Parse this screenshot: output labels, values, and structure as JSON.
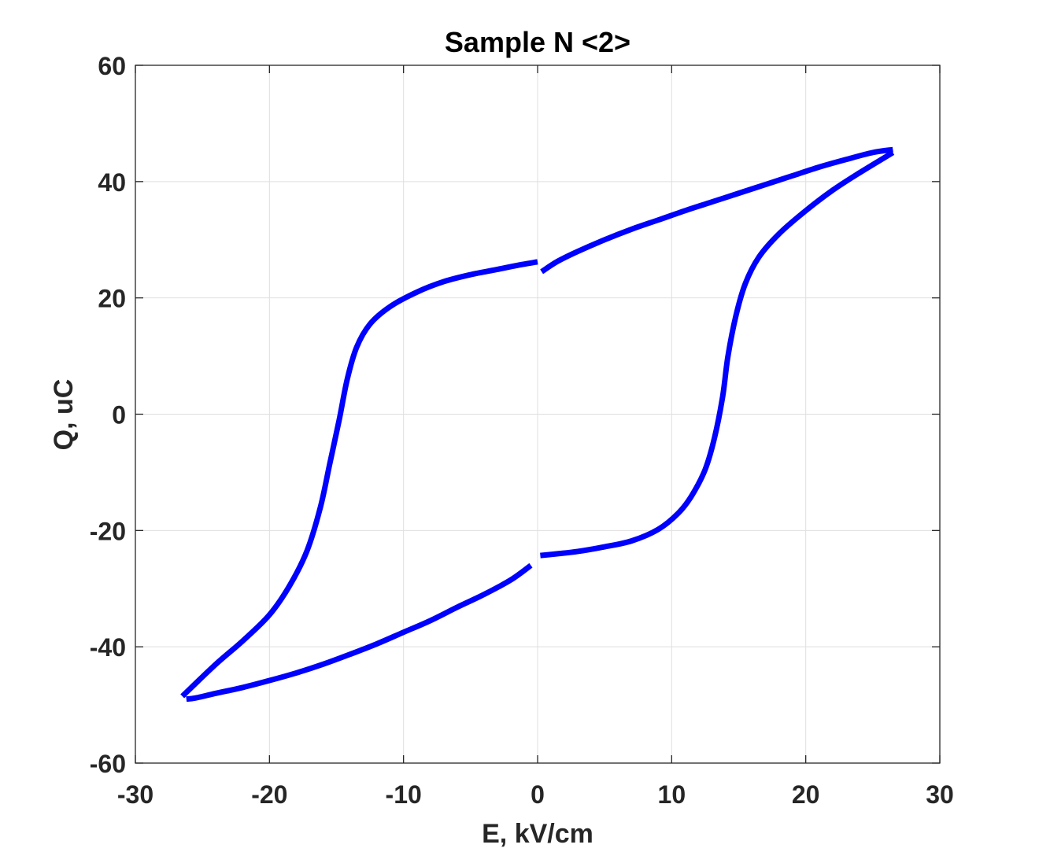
{
  "chart_data": {
    "type": "line",
    "title": "Sample N <2>",
    "xlabel": "E, kV/cm",
    "ylabel": "Q, uC",
    "xlim": [
      -30,
      30
    ],
    "ylim": [
      -60,
      60
    ],
    "xticks": [
      -30,
      -20,
      -10,
      0,
      10,
      20,
      30
    ],
    "yticks": [
      -60,
      -40,
      -20,
      0,
      20,
      40,
      60
    ],
    "xtick_labels": [
      "-30",
      "-20",
      "-10",
      "0",
      "10",
      "20",
      "30"
    ],
    "ytick_labels": [
      "-60",
      "-40",
      "-20",
      "0",
      "20",
      "40",
      "60"
    ],
    "grid": true,
    "color": "#0000ff",
    "series": [
      {
        "segment": "upper-branch-positive",
        "x": [
          0.3,
          1.5,
          3,
          5,
          7,
          9,
          11,
          13,
          15,
          17,
          19,
          21,
          23,
          25,
          26.5
        ],
        "y": [
          24.5,
          26.3,
          28.0,
          30.0,
          31.8,
          33.4,
          35.0,
          36.5,
          38.0,
          39.5,
          41.0,
          42.5,
          43.8,
          45.0,
          45.5
        ]
      },
      {
        "segment": "descending-branch",
        "x": [
          26.5,
          24,
          22,
          20,
          18,
          16.5,
          15.5,
          14.8,
          14.2,
          13.8,
          13.2,
          12.5,
          11.5,
          10.5,
          9,
          7,
          5,
          3,
          1.5,
          0.2
        ],
        "y": [
          45.0,
          41.5,
          38.5,
          35.0,
          31.0,
          27.0,
          22.5,
          17.0,
          10.0,
          3.0,
          -4.0,
          -9.5,
          -14.0,
          -17.0,
          -19.8,
          -21.8,
          -22.8,
          -23.6,
          -24.0,
          -24.3
        ]
      },
      {
        "segment": "lower-branch-negative",
        "x": [
          -0.5,
          -2,
          -4,
          -6,
          -8,
          -10,
          -12,
          -14,
          -16,
          -18,
          -20,
          -22,
          -24,
          -25.5,
          -26.2
        ],
        "y": [
          -26.0,
          -28.5,
          -31.0,
          -33.2,
          -35.5,
          -37.5,
          -39.5,
          -41.3,
          -43.0,
          -44.5,
          -45.8,
          -47.0,
          -48.0,
          -48.8,
          -49.0
        ]
      },
      {
        "segment": "ascending-branch",
        "x": [
          -26.5,
          -24,
          -22,
          -20,
          -18.5,
          -17.2,
          -16.2,
          -15.5,
          -14.8,
          -14.2,
          -13.5,
          -12.5,
          -11,
          -9,
          -7,
          -5,
          -3,
          -1.5,
          0
        ],
        "y": [
          -48.5,
          -43.0,
          -39.0,
          -34.5,
          -29.5,
          -23.5,
          -16.0,
          -8.5,
          -1.0,
          6.0,
          11.5,
          15.5,
          18.5,
          21.0,
          22.8,
          24.0,
          24.9,
          25.6,
          26.2
        ]
      }
    ]
  }
}
